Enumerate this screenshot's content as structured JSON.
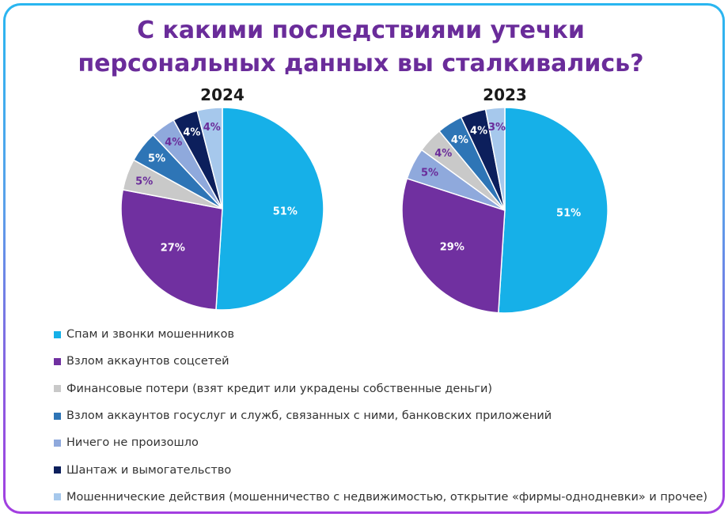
{
  "title_line1": "С какими последствиями утечки",
  "title_line2": "персональных данных вы сталкивались?",
  "colors": {
    "frame_top": "#29b6f0",
    "frame_bottom": "#a33ee0",
    "title": "#6a2c9a"
  },
  "chart_data": [
    {
      "type": "pie",
      "title": "2024",
      "categories": [
        "Спам и звонки мошенников",
        "Взлом аккаунтов соцсетей",
        "Финансовые потери (взят кредит или украдены собственные деньги)",
        "Взлом аккаунтов госуслуг и служб, связанных с ними, банковских приложений",
        "Ничего не произошло",
        "Шантаж и вымогательство",
        "Мошеннические действия (мошенничество с недвижимостью, открытие «фирмы-однодневки» и прочее)"
      ],
      "values": [
        51,
        27,
        5,
        5,
        4,
        4,
        4
      ],
      "labels": [
        "51%",
        "27%",
        "5%",
        "5%",
        "4%",
        "4%",
        "4%"
      ]
    },
    {
      "type": "pie",
      "title": "2023",
      "categories": [
        "Спам и звонки мошенников",
        "Взлом аккаунтов соцсетей",
        "Ничего не произошло",
        "Финансовые потери (взят кредит или украдены собственные деньги)",
        "Взлом аккаунтов госуслуг и служб, связанных с ними, банковских приложений",
        "Шантаж и вымогательство",
        "Мошеннические действия (мошенничество с недвижимостью, открытие «фирмы-однодневки» и прочее)"
      ],
      "values": [
        51,
        29,
        5,
        4,
        4,
        4,
        3
      ],
      "labels": [
        "51%",
        "29%",
        "5%",
        "4%",
        "4%",
        "4%",
        "3%"
      ]
    }
  ],
  "legend": [
    {
      "label": "Спам и звонки мошенников",
      "color": "#16b0e8"
    },
    {
      "label": "Взлом аккаунтов соцсетей",
      "color": "#7030a0"
    },
    {
      "label": "Финансовые потери (взят кредит или украдены собственные деньги)",
      "color": "#c9c9c9"
    },
    {
      "label": "Взлом аккаунтов госуслуг и служб, связанных с ними, банковских приложений",
      "color": "#2e75b6"
    },
    {
      "label": "Ничего не произошло",
      "color": "#8fa9dc"
    },
    {
      "label": "Шантаж и вымогательство",
      "color": "#0c1f5c"
    },
    {
      "label": "Мошеннические действия (мошенничество с недвижимостью, открытие «фирмы-однодневки» и прочее)",
      "color": "#a6c8ec"
    }
  ]
}
